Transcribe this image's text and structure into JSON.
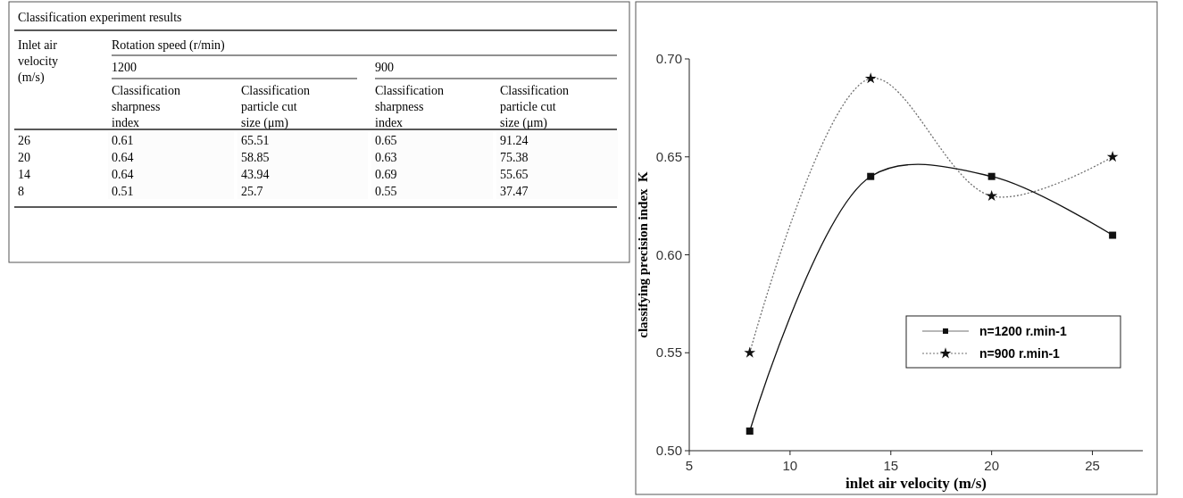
{
  "chart_data": [
    {
      "type": "heatmap",
      "title": "Classification experiment results",
      "annotations": [
        "Inlet air velocity (m/s)",
        "Rotation speed (r/min)",
        "1200",
        "900"
      ],
      "categories": [
        "Classification sharpness index",
        "Classification particle cut size (μm)",
        "Classification sharpness index",
        "Classification particle cut size (μm)"
      ],
      "y_categories": [
        "26",
        "20",
        "14",
        "8"
      ],
      "data_labels": true,
      "cells": [
        [
          0.61,
          65.51,
          0.65,
          91.24
        ],
        [
          0.64,
          58.85,
          0.63,
          75.38
        ],
        [
          0.64,
          43.94,
          0.69,
          55.65
        ],
        [
          0.51,
          25.7,
          0.55,
          37.47
        ]
      ]
    },
    {
      "type": "line",
      "xlabel": "inlet air velocity (m/s)",
      "ylabel": "classifying precision index  K",
      "x": [
        8,
        14,
        20,
        26
      ],
      "series": [
        {
          "name": "n=1200 r.min-1",
          "color": "#111111",
          "values": [
            0.51,
            0.64,
            0.64,
            0.61
          ],
          "marker": "square",
          "line_style": "solid"
        },
        {
          "name": "n=900 r.min-1",
          "color": "#111111",
          "values": [
            0.55,
            0.69,
            0.63,
            0.65
          ],
          "marker": "star",
          "line_style": "dotted"
        }
      ],
      "xlim": [
        5,
        27.5
      ],
      "xticks": [
        5,
        10,
        15,
        20,
        25
      ],
      "ylim": [
        0.5,
        0.7
      ],
      "yticks": [
        {
          "value": 0.5,
          "label": "0.50"
        },
        {
          "value": 0.55,
          "label": "0.55"
        },
        {
          "value": 0.6,
          "label": "0.60"
        },
        {
          "value": 0.65,
          "label": "0.65"
        },
        {
          "value": 0.7,
          "label": "0.70"
        }
      ],
      "legend": "bottom right",
      "grid": false
    }
  ]
}
